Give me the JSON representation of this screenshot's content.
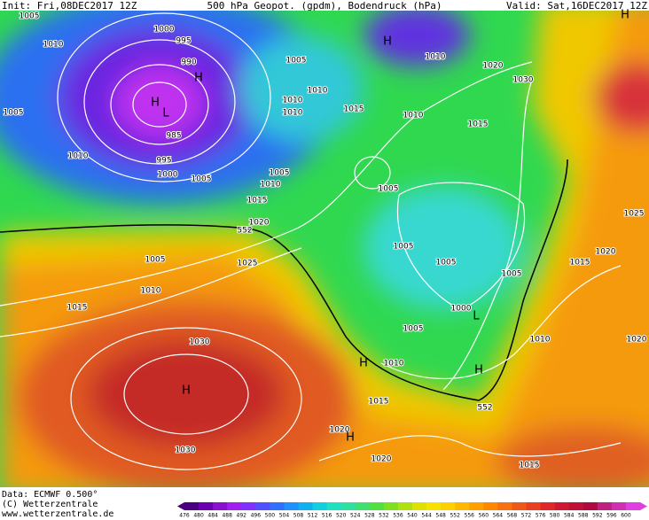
{
  "header": {
    "init": "Init: Fri,08DEC2017 12Z",
    "title": "500 hPa Geopot. (gpdm), Bodendruck (hPa)",
    "valid": "Valid: Sat,16DEC2017 12Z"
  },
  "footer": {
    "data": "Data: ECMWF  0.500°",
    "copyright": "(C) Wetterzentrale",
    "url": "www.wetterzentrale.de"
  },
  "scale": {
    "labels": [
      "476",
      "480",
      "484",
      "488",
      "492",
      "496",
      "500",
      "504",
      "508",
      "512",
      "516",
      "520",
      "524",
      "528",
      "532",
      "536",
      "540",
      "544",
      "548",
      "552",
      "556",
      "560",
      "564",
      "568",
      "572",
      "576",
      "580",
      "584",
      "588",
      "592",
      "596",
      "600"
    ]
  },
  "map_labels": [
    "1005",
    "1000",
    "995",
    "990",
    "1010",
    "1005",
    "1010",
    "985",
    "995",
    "1000",
    "1005",
    "1005",
    "1010",
    "1015",
    "1020",
    "552",
    "1005",
    "1010",
    "1015",
    "1025",
    "1030",
    "1030",
    "1005",
    "1010",
    "1010",
    "1010",
    "1015",
    "1010",
    "1015",
    "1010",
    "1020",
    "1030",
    "1005",
    "1005",
    "1005",
    "1000",
    "1005",
    "1005",
    "1015",
    "1020",
    "1025",
    "1010",
    "1010",
    "1015",
    "552",
    "1020",
    "1020",
    "1015",
    "1020"
  ],
  "markers": [
    "H",
    "L",
    "H",
    "H",
    "H",
    "H",
    "L",
    "H",
    "H",
    "H"
  ]
}
